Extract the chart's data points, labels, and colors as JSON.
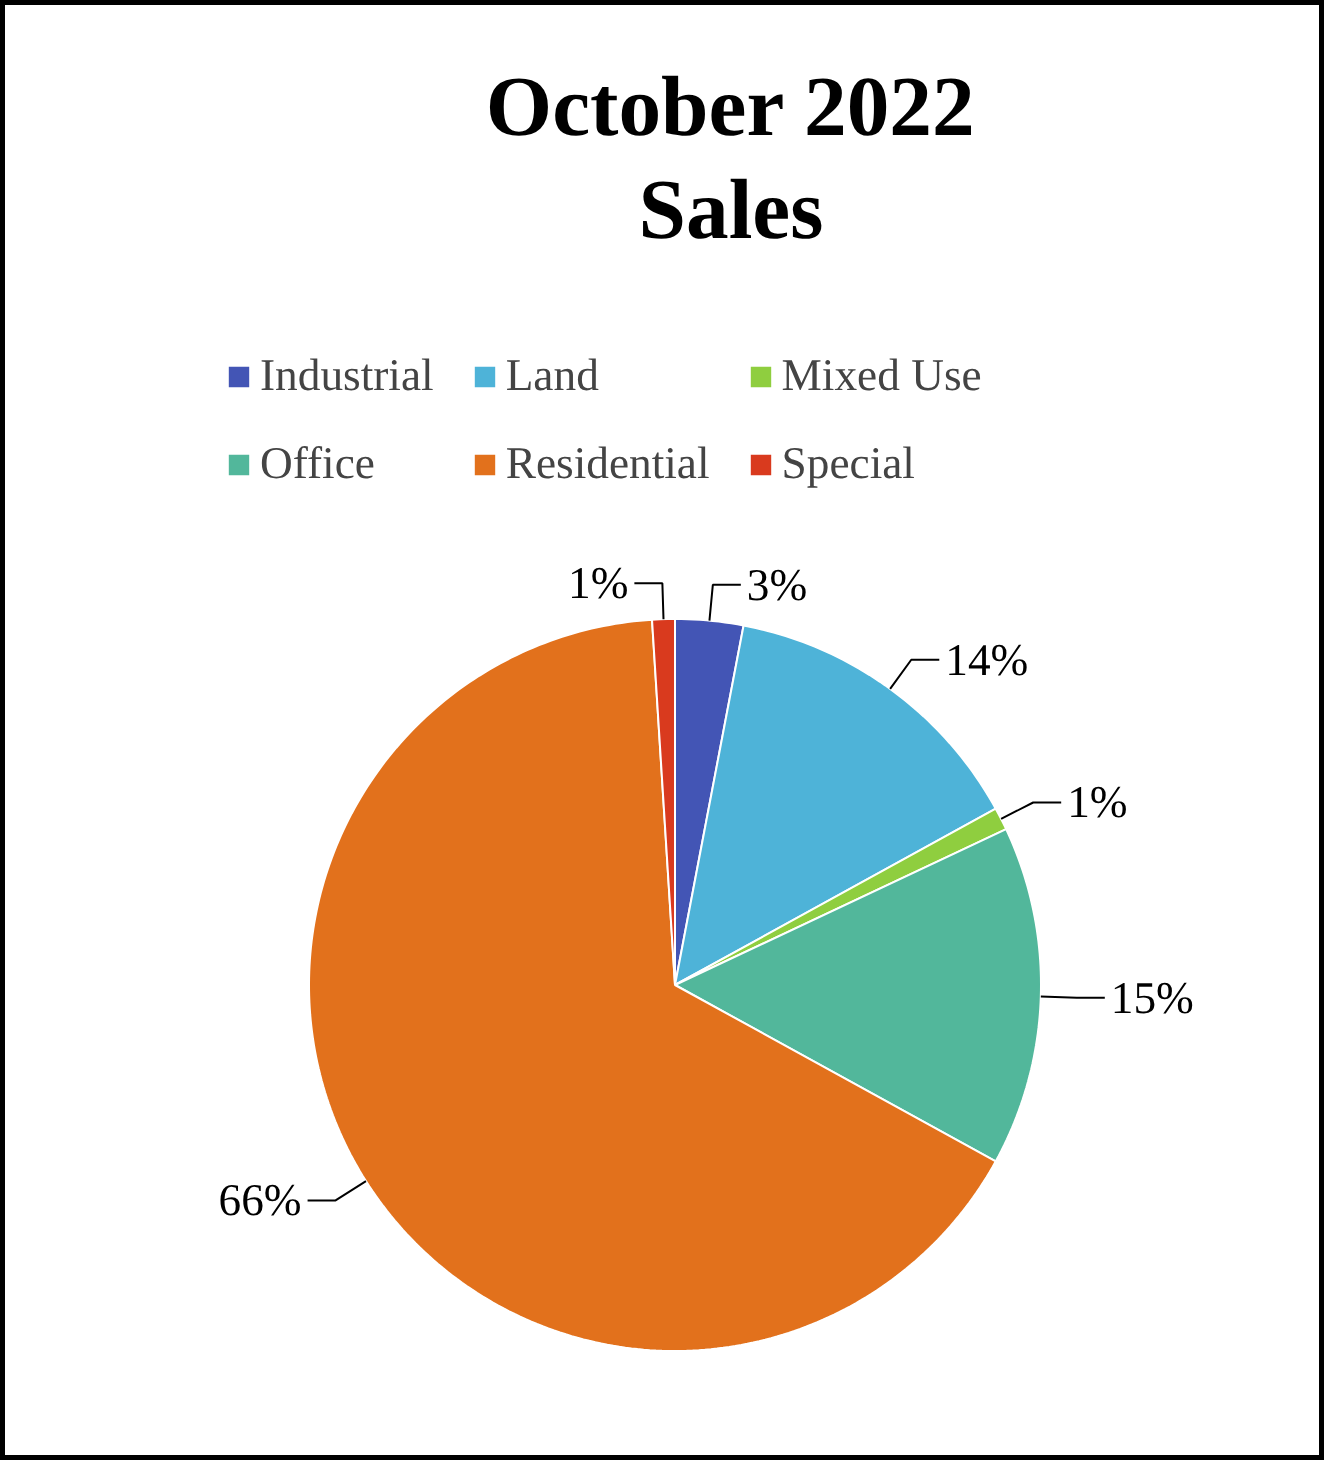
{
  "chart_data": {
    "type": "pie",
    "title": "October 2022\nSales",
    "categories": [
      "Industrial",
      "Land",
      "Mixed Use",
      "Office",
      "Residential",
      "Special"
    ],
    "values": [
      3,
      14,
      1,
      15,
      66,
      1
    ],
    "colors": [
      "#4355b5",
      "#4eb3d8",
      "#8fce3f",
      "#52b79b",
      "#e2711c",
      "#d93a1e"
    ],
    "value_labels": [
      "3%",
      "14%",
      "1%",
      "15%",
      "66%",
      "1%"
    ],
    "legend": "top"
  }
}
